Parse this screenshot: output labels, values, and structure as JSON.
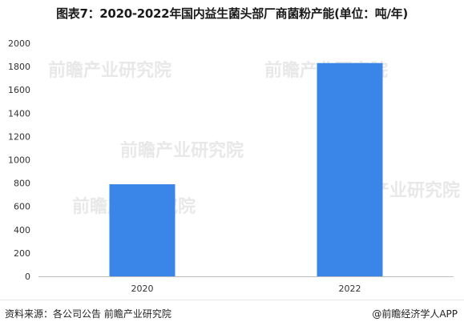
{
  "title": "图表7：2020-2022年国内益生菌头部厂商菌粉产能(单位：吨/年)",
  "chart_data": {
    "type": "bar",
    "categories": [
      "2020",
      "2022"
    ],
    "values": [
      790,
      1830
    ],
    "ylim": [
      0,
      2000
    ],
    "yticks": [
      0,
      200,
      400,
      600,
      800,
      1000,
      1200,
      1400,
      1600,
      1800,
      2000
    ],
    "bar_color": "#3a86e8",
    "grid": false
  },
  "footer": {
    "source": "资料来源：各公司公告 前瞻产业研究院",
    "brand": "@前瞻经济学人APP"
  },
  "watermark": "前瞻产业研究院"
}
